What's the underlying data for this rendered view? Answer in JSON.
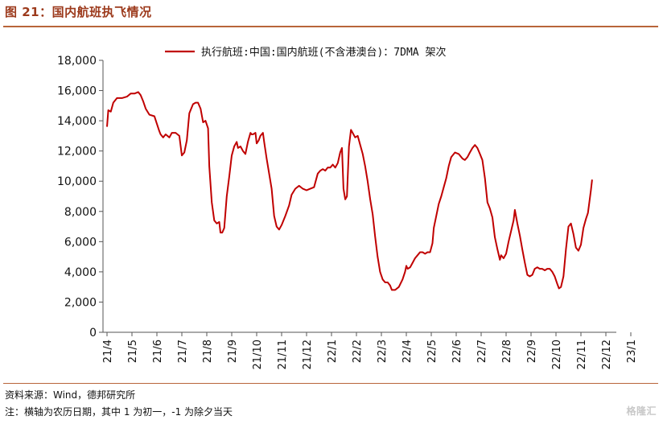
{
  "figure_title": "图 21：国内航班执飞情况",
  "source": "资料来源：Wind，德邦研究所",
  "note": "注：横轴为农历日期，其中 1 为初一，-1 为除夕当天",
  "watermark": "格隆汇",
  "colors": {
    "series": "#c00000",
    "accent": "#9c3a1c",
    "rule": "#b8653a"
  },
  "chart_data": {
    "type": "line",
    "legend": {
      "position": "top",
      "entries": [
        "执行航班:中国:国内航班(不含港澳台)：7DMA 架次"
      ]
    },
    "x_ticks": [
      "21/4",
      "21/5",
      "21/6",
      "21/7",
      "21/8",
      "21/9",
      "21/10",
      "21/11",
      "21/12",
      "22/1",
      "22/2",
      "22/3",
      "22/4",
      "22/5",
      "22/6",
      "22/7",
      "22/8",
      "22/9",
      "22/10",
      "22/11",
      "22/12",
      "23/1"
    ],
    "y_ticks": [
      "0",
      "2,000",
      "4,000",
      "6,000",
      "8,000",
      "10,000",
      "12,000",
      "14,000",
      "16,000",
      "18,000"
    ],
    "ylim": [
      0,
      18000
    ],
    "xlim": [
      0,
      21.4
    ],
    "grid": false,
    "series": [
      {
        "name": "执行航班:中国:国内航班(不含港澳台)：7DMA 架次",
        "points": [
          [
            0.0,
            13600
          ],
          [
            0.05,
            14700
          ],
          [
            0.15,
            14600
          ],
          [
            0.25,
            15200
          ],
          [
            0.4,
            15500
          ],
          [
            0.6,
            15500
          ],
          [
            0.8,
            15600
          ],
          [
            0.95,
            15800
          ],
          [
            1.1,
            15800
          ],
          [
            1.25,
            15900
          ],
          [
            1.35,
            15700
          ],
          [
            1.45,
            15300
          ],
          [
            1.55,
            14800
          ],
          [
            1.7,
            14400
          ],
          [
            1.9,
            14300
          ],
          [
            2.0,
            13800
          ],
          [
            2.1,
            13300
          ],
          [
            2.15,
            13100
          ],
          [
            2.25,
            12900
          ],
          [
            2.35,
            13100
          ],
          [
            2.5,
            12900
          ],
          [
            2.6,
            13200
          ],
          [
            2.75,
            13200
          ],
          [
            2.9,
            13000
          ],
          [
            3.0,
            11700
          ],
          [
            3.1,
            11900
          ],
          [
            3.2,
            12700
          ],
          [
            3.3,
            14500
          ],
          [
            3.45,
            15100
          ],
          [
            3.55,
            15200
          ],
          [
            3.65,
            15200
          ],
          [
            3.75,
            14800
          ],
          [
            3.85,
            13900
          ],
          [
            3.95,
            14000
          ],
          [
            4.05,
            13500
          ],
          [
            4.1,
            11000
          ],
          [
            4.2,
            8600
          ],
          [
            4.3,
            7400
          ],
          [
            4.4,
            7200
          ],
          [
            4.5,
            7300
          ],
          [
            4.55,
            6600
          ],
          [
            4.62,
            6600
          ],
          [
            4.7,
            6900
          ],
          [
            4.8,
            9000
          ],
          [
            4.9,
            10300
          ],
          [
            5.0,
            11700
          ],
          [
            5.1,
            12300
          ],
          [
            5.2,
            12600
          ],
          [
            5.25,
            12200
          ],
          [
            5.35,
            12300
          ],
          [
            5.45,
            12000
          ],
          [
            5.55,
            11800
          ],
          [
            5.65,
            12600
          ],
          [
            5.75,
            13200
          ],
          [
            5.8,
            13100
          ],
          [
            5.85,
            13100
          ],
          [
            5.95,
            13200
          ],
          [
            6.0,
            12500
          ],
          [
            6.08,
            12700
          ],
          [
            6.15,
            13000
          ],
          [
            6.25,
            13200
          ],
          [
            6.3,
            12600
          ],
          [
            6.4,
            11500
          ],
          [
            6.5,
            10500
          ],
          [
            6.6,
            9500
          ],
          [
            6.7,
            7700
          ],
          [
            6.8,
            7000
          ],
          [
            6.9,
            6800
          ],
          [
            7.0,
            7100
          ],
          [
            7.15,
            7700
          ],
          [
            7.3,
            8400
          ],
          [
            7.4,
            9100
          ],
          [
            7.55,
            9500
          ],
          [
            7.7,
            9700
          ],
          [
            7.85,
            9500
          ],
          [
            8.0,
            9400
          ],
          [
            8.15,
            9500
          ],
          [
            8.3,
            9600
          ],
          [
            8.45,
            10500
          ],
          [
            8.55,
            10700
          ],
          [
            8.65,
            10800
          ],
          [
            8.75,
            10700
          ],
          [
            8.85,
            10900
          ],
          [
            8.95,
            10900
          ],
          [
            9.05,
            11100
          ],
          [
            9.15,
            10900
          ],
          [
            9.25,
            11200
          ],
          [
            9.35,
            11900
          ],
          [
            9.42,
            12200
          ],
          [
            9.48,
            9500
          ],
          [
            9.55,
            8800
          ],
          [
            9.62,
            9000
          ],
          [
            9.7,
            12300
          ],
          [
            9.78,
            13400
          ],
          [
            9.85,
            13200
          ],
          [
            9.95,
            12900
          ],
          [
            10.05,
            13000
          ],
          [
            10.15,
            12400
          ],
          [
            10.25,
            11800
          ],
          [
            10.35,
            11000
          ],
          [
            10.45,
            10000
          ],
          [
            10.55,
            8800
          ],
          [
            10.65,
            7800
          ],
          [
            10.75,
            6300
          ],
          [
            10.85,
            5000
          ],
          [
            10.95,
            4000
          ],
          [
            11.05,
            3500
          ],
          [
            11.15,
            3300
          ],
          [
            11.25,
            3300
          ],
          [
            11.35,
            3100
          ],
          [
            11.42,
            2800
          ],
          [
            11.55,
            2800
          ],
          [
            11.7,
            3000
          ],
          [
            11.85,
            3500
          ],
          [
            11.95,
            4000
          ],
          [
            12.0,
            4400
          ],
          [
            12.05,
            4200
          ],
          [
            12.15,
            4300
          ],
          [
            12.25,
            4600
          ],
          [
            12.35,
            4900
          ],
          [
            12.45,
            5100
          ],
          [
            12.55,
            5300
          ],
          [
            12.65,
            5300
          ],
          [
            12.75,
            5200
          ],
          [
            12.85,
            5300
          ],
          [
            12.95,
            5300
          ],
          [
            13.05,
            5900
          ],
          [
            13.1,
            6900
          ],
          [
            13.2,
            7700
          ],
          [
            13.3,
            8500
          ],
          [
            13.4,
            9000
          ],
          [
            13.5,
            9600
          ],
          [
            13.6,
            10200
          ],
          [
            13.7,
            11000
          ],
          [
            13.8,
            11600
          ],
          [
            13.95,
            11900
          ],
          [
            14.1,
            11800
          ],
          [
            14.25,
            11500
          ],
          [
            14.35,
            11400
          ],
          [
            14.45,
            11600
          ],
          [
            14.55,
            11900
          ],
          [
            14.65,
            12200
          ],
          [
            14.75,
            12400
          ],
          [
            14.85,
            12200
          ],
          [
            14.95,
            11800
          ],
          [
            15.05,
            11400
          ],
          [
            15.15,
            10200
          ],
          [
            15.25,
            8600
          ],
          [
            15.35,
            8200
          ],
          [
            15.45,
            7600
          ],
          [
            15.55,
            6300
          ],
          [
            15.65,
            5500
          ],
          [
            15.75,
            4800
          ],
          [
            15.8,
            5100
          ],
          [
            15.9,
            4900
          ],
          [
            16.0,
            5200
          ],
          [
            16.1,
            6000
          ],
          [
            16.2,
            6700
          ],
          [
            16.3,
            7400
          ],
          [
            16.35,
            8100
          ],
          [
            16.45,
            7200
          ],
          [
            16.55,
            6400
          ],
          [
            16.65,
            5500
          ],
          [
            16.75,
            4600
          ],
          [
            16.85,
            3800
          ],
          [
            16.95,
            3700
          ],
          [
            17.05,
            3800
          ],
          [
            17.15,
            4200
          ],
          [
            17.25,
            4300
          ],
          [
            17.35,
            4200
          ],
          [
            17.45,
            4200
          ],
          [
            17.55,
            4100
          ],
          [
            17.65,
            4200
          ],
          [
            17.75,
            4200
          ],
          [
            17.85,
            4000
          ],
          [
            17.95,
            3700
          ],
          [
            18.05,
            3200
          ],
          [
            18.12,
            2900
          ],
          [
            18.2,
            3000
          ],
          [
            18.3,
            3700
          ],
          [
            18.4,
            5500
          ],
          [
            18.5,
            7000
          ],
          [
            18.6,
            7200
          ],
          [
            18.7,
            6500
          ],
          [
            18.8,
            5600
          ],
          [
            18.9,
            5400
          ],
          [
            19.0,
            5800
          ],
          [
            19.1,
            6900
          ],
          [
            19.2,
            7500
          ],
          [
            19.28,
            7900
          ],
          [
            19.33,
            8500
          ],
          [
            19.4,
            9400
          ],
          [
            19.45,
            10100
          ]
        ]
      }
    ]
  }
}
